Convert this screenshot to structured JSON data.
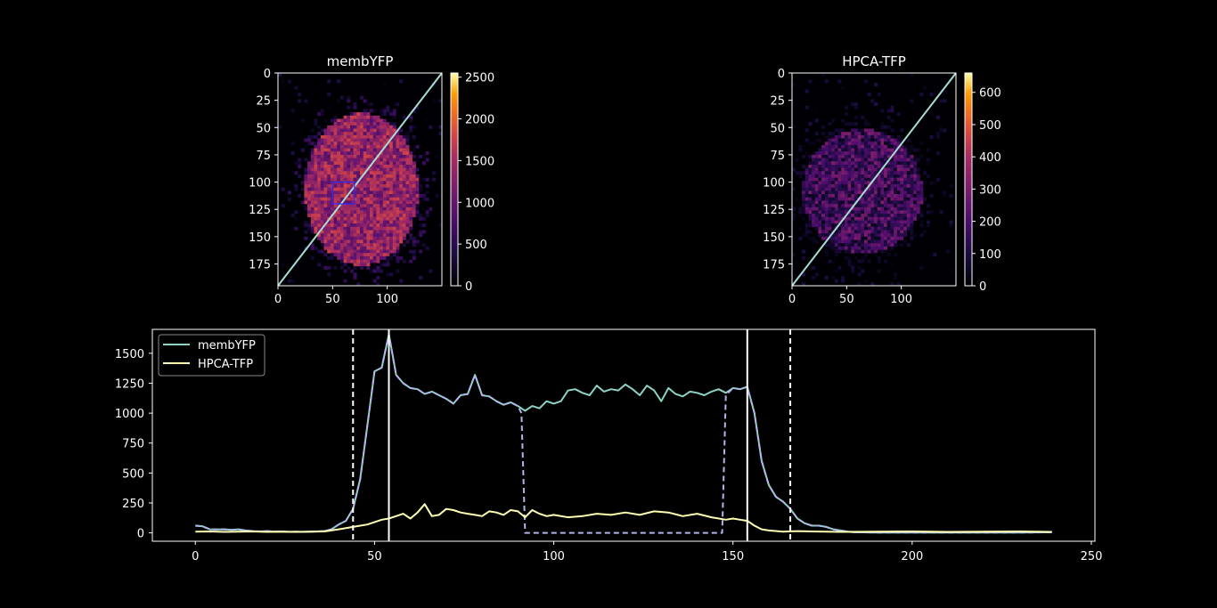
{
  "figure": {
    "background": "#000000",
    "foreground": "#ffffff"
  },
  "chart_data": [
    {
      "type": "heatmap",
      "title": "membYFP",
      "colormap": "inferno",
      "xlim": [
        0,
        150
      ],
      "ylim": [
        195,
        0
      ],
      "xticks": [
        0,
        50,
        100
      ],
      "yticks": [
        0,
        25,
        50,
        75,
        100,
        125,
        150,
        175
      ],
      "colorbar": {
        "min": 0,
        "max": 2550,
        "ticks": [
          0,
          500,
          1000,
          1500,
          2000,
          2500
        ]
      },
      "blob": {
        "cx": 75,
        "cy": 105,
        "rx": 52,
        "ry": 70,
        "level": 0.45
      },
      "roi_box": {
        "x0": 50,
        "y0": 100,
        "x1": 70,
        "y1": 120,
        "color": "#2b2bff"
      },
      "line_profile": {
        "x0": 0,
        "y0": 195,
        "x1": 150,
        "y1": 0,
        "color": "#a6dfd0"
      }
    },
    {
      "type": "heatmap",
      "title": "HPCA-TFP",
      "colormap": "inferno",
      "xlim": [
        0,
        150
      ],
      "ylim": [
        195,
        0
      ],
      "xticks": [
        0,
        50,
        100
      ],
      "yticks": [
        0,
        25,
        50,
        75,
        100,
        125,
        150,
        175
      ],
      "colorbar": {
        "min": 0,
        "max": 660,
        "ticks": [
          0,
          100,
          200,
          300,
          400,
          500,
          600
        ]
      },
      "blob": {
        "cx": 63,
        "cy": 107,
        "rx": 55,
        "ry": 57,
        "level": 0.22
      },
      "line_profile": {
        "x0": 0,
        "y0": 195,
        "x1": 150,
        "y1": 0,
        "color": "#a6dfd0"
      }
    },
    {
      "type": "line",
      "xlim": [
        -12,
        251
      ],
      "ylim": [
        -70,
        1700
      ],
      "xticks": [
        0,
        50,
        100,
        150,
        200,
        250
      ],
      "yticks": [
        0,
        250,
        500,
        750,
        1000,
        1250,
        1500
      ],
      "legend": {
        "placement": "top-left",
        "entries": [
          "membYFP",
          "HPCA-TFP"
        ]
      },
      "series": [
        {
          "name": "membYFP",
          "color": "#8dd3c7",
          "x": [
            0,
            2,
            4,
            6,
            8,
            10,
            12,
            14,
            16,
            18,
            20,
            22,
            24,
            26,
            28,
            30,
            32,
            34,
            36,
            38,
            40,
            42,
            44,
            46,
            48,
            50,
            52,
            54,
            56,
            58,
            60,
            62,
            64,
            66,
            68,
            70,
            72,
            74,
            76,
            78,
            80,
            82,
            84,
            86,
            88,
            90,
            92,
            94,
            96,
            98,
            100,
            102,
            104,
            106,
            108,
            110,
            112,
            114,
            116,
            118,
            120,
            122,
            124,
            126,
            128,
            130,
            132,
            134,
            136,
            138,
            140,
            142,
            144,
            146,
            148,
            150,
            152,
            154,
            156,
            158,
            160,
            162,
            164,
            166,
            168,
            170,
            172,
            174,
            176,
            178,
            180,
            182,
            184,
            190,
            200,
            210,
            220,
            230,
            239
          ],
          "y": [
            60,
            55,
            30,
            28,
            30,
            25,
            30,
            20,
            15,
            12,
            15,
            10,
            12,
            8,
            10,
            8,
            10,
            12,
            15,
            30,
            70,
            100,
            200,
            450,
            900,
            1350,
            1380,
            1660,
            1320,
            1250,
            1210,
            1200,
            1160,
            1180,
            1150,
            1120,
            1080,
            1150,
            1160,
            1320,
            1150,
            1140,
            1100,
            1070,
            1090,
            1060,
            1020,
            1060,
            1040,
            1100,
            1080,
            1100,
            1190,
            1200,
            1170,
            1150,
            1230,
            1180,
            1200,
            1190,
            1240,
            1200,
            1150,
            1230,
            1190,
            1100,
            1210,
            1160,
            1140,
            1180,
            1170,
            1150,
            1180,
            1200,
            1170,
            1210,
            1200,
            1220,
            1000,
            600,
            400,
            300,
            260,
            200,
            120,
            80,
            60,
            60,
            50,
            30,
            20,
            10,
            5,
            3,
            2,
            2,
            2,
            2,
            5
          ]
        },
        {
          "name": "HPCA-TFP",
          "color": "#ffffb3",
          "x": [
            0,
            4,
            8,
            12,
            16,
            20,
            24,
            28,
            32,
            36,
            40,
            44,
            48,
            52,
            54,
            56,
            58,
            60,
            62,
            64,
            66,
            68,
            70,
            72,
            74,
            76,
            78,
            80,
            82,
            84,
            86,
            88,
            90,
            92,
            94,
            96,
            98,
            100,
            104,
            108,
            112,
            116,
            120,
            124,
            128,
            132,
            136,
            140,
            144,
            148,
            150,
            152,
            154,
            156,
            158,
            160,
            164,
            168,
            172,
            176,
            180,
            190,
            200,
            210,
            220,
            230,
            239
          ],
          "y": [
            10,
            12,
            8,
            10,
            12,
            8,
            10,
            8,
            10,
            12,
            30,
            50,
            70,
            110,
            120,
            140,
            160,
            120,
            170,
            240,
            140,
            150,
            200,
            190,
            170,
            160,
            150,
            140,
            180,
            170,
            150,
            190,
            180,
            130,
            190,
            160,
            140,
            150,
            130,
            140,
            160,
            150,
            170,
            150,
            180,
            170,
            140,
            160,
            130,
            110,
            120,
            110,
            100,
            60,
            30,
            20,
            10,
            15,
            12,
            10,
            8,
            10,
            12,
            8,
            10,
            12,
            8
          ]
        },
        {
          "name": "",
          "style": "dashed",
          "color": "#b3b3ee",
          "x": [
            0,
            2,
            4,
            6,
            8,
            10,
            12,
            14,
            16,
            18,
            20,
            22,
            24,
            26,
            28,
            30,
            32,
            34,
            36,
            38,
            40,
            42,
            44,
            46,
            48,
            50,
            52,
            54,
            56,
            58,
            60,
            62,
            64,
            66,
            68,
            70,
            72,
            74,
            76,
            78,
            80,
            82,
            84,
            86,
            88,
            90,
            91,
            92,
            147,
            148,
            150,
            152,
            154,
            156,
            158,
            160,
            162,
            164,
            166,
            168,
            170,
            172,
            174,
            176,
            178,
            180,
            182,
            184,
            190,
            200,
            210,
            220,
            230,
            239
          ],
          "y": [
            60,
            55,
            30,
            28,
            30,
            25,
            30,
            20,
            15,
            12,
            15,
            10,
            12,
            8,
            10,
            8,
            10,
            12,
            15,
            30,
            70,
            100,
            200,
            450,
            900,
            1350,
            1380,
            1660,
            1320,
            1250,
            1210,
            1200,
            1160,
            1180,
            1150,
            1120,
            1080,
            1150,
            1160,
            1320,
            1150,
            1140,
            1100,
            1070,
            1090,
            1060,
            1000,
            0,
            0,
            1150,
            1210,
            1200,
            1220,
            1000,
            600,
            400,
            300,
            260,
            200,
            120,
            80,
            60,
            60,
            50,
            30,
            20,
            10,
            5,
            3,
            2,
            2,
            2,
            2,
            5
          ]
        }
      ],
      "vlines": [
        {
          "x": 44,
          "style": "dashed"
        },
        {
          "x": 54,
          "style": "solid"
        },
        {
          "x": 154,
          "style": "solid"
        },
        {
          "x": 166,
          "style": "dashed"
        }
      ]
    }
  ]
}
